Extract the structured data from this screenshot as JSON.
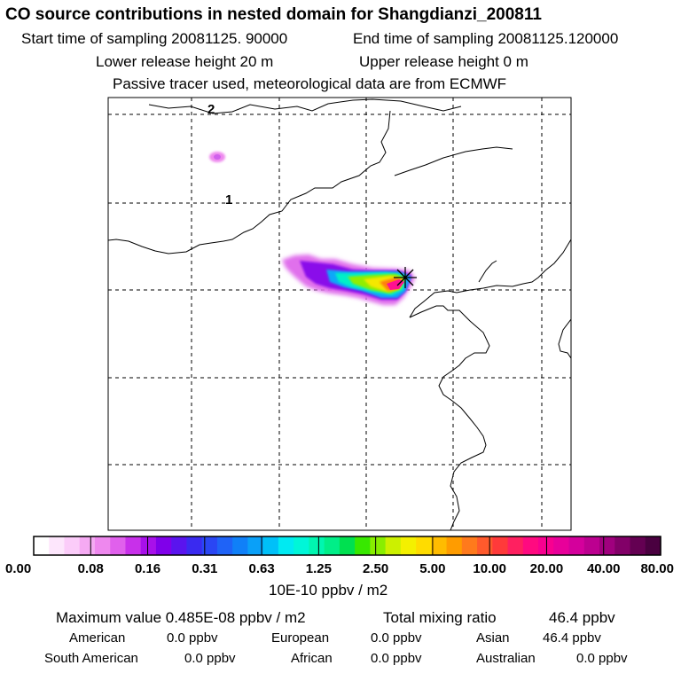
{
  "header": {
    "title": "CO  source contributions in nested domain for Shangdianzi_200811",
    "start_label": "Start time of sampling 20081125. 90000",
    "end_label": "End time of sampling 20081125.120000",
    "lower_label": "Lower release height   20 m",
    "upper_label": "Upper release height    0 m",
    "tracer_label": "Passive tracer used, meteorological data are from ECMWF"
  },
  "map": {
    "grid_labels": [
      "2",
      "1"
    ],
    "receptor_marker": "star-marker"
  },
  "colorbar": {
    "tick_labels": [
      "0.00",
      "0.08",
      "0.16",
      "0.31",
      "0.63",
      "1.25",
      "2.50",
      "5.00",
      "10.00",
      "20.00",
      "40.00",
      "80.00"
    ],
    "unit": "10E-10 ppbv / m2",
    "colors": [
      "#ffffff",
      "#fde6fc",
      "#fbccf9",
      "#f5aaf3",
      "#ee88ee",
      "#e060ec",
      "#c830ea",
      "#a810ea",
      "#8000ea",
      "#5a14ee",
      "#3a2af0",
      "#2a46f4",
      "#1f63f7",
      "#1080f8",
      "#0aa0f8",
      "#00c0f8",
      "#00eaf2",
      "#00f6d8",
      "#00f6b0",
      "#00ee88",
      "#00e050",
      "#38e800",
      "#88ee00",
      "#ccf000",
      "#f4f000",
      "#ffdc00",
      "#ffbc00",
      "#ff9c00",
      "#ff7a1c",
      "#ff5a2c",
      "#ff3a3a",
      "#ff2060",
      "#ff0a80",
      "#f80090",
      "#e8009a",
      "#d4009c",
      "#bc0090",
      "#a0007e",
      "#820068",
      "#640052",
      "#4a0040"
    ]
  },
  "stats": {
    "max_label": "Maximum value  0.485E-08 ppbv / m2",
    "total_label": "Total mixing ratio",
    "total_value": "46.4 ppbv",
    "regions": [
      {
        "name": "American",
        "value": "0.0 ppbv"
      },
      {
        "name": "European",
        "value": "0.0 ppbv"
      },
      {
        "name": "Asian",
        "value": "46.4 ppbv"
      },
      {
        "name": "South American",
        "value": "0.0 ppbv"
      },
      {
        "name": "African",
        "value": "0.0 ppbv"
      },
      {
        "name": "Australian",
        "value": "0.0 ppbv"
      }
    ]
  }
}
